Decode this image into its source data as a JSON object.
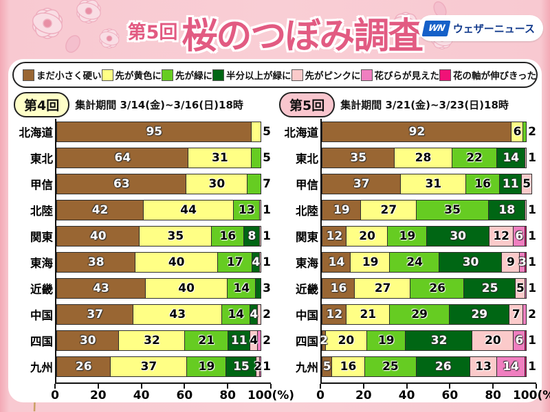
{
  "header": {
    "title_prefix": "第5回",
    "title_main": "桜のつぼみ調査",
    "title_color": "#e25b82",
    "logo_mark": "WN",
    "logo_text": "ウェザーニュース"
  },
  "legend": {
    "items": [
      {
        "label": "まだ小さく硬い",
        "color": "#996633"
      },
      {
        "label": "先が黄色に",
        "color": "#ffff85"
      },
      {
        "label": "先が緑に",
        "color": "#66cc22"
      },
      {
        "label": "半分以上が緑に",
        "color": "#006614"
      },
      {
        "label": "先がピンクに",
        "color": "#fbcaca"
      },
      {
        "label": "花びらが見えた",
        "color": "#f07fc0"
      },
      {
        "label": "花の軸が伸びきった",
        "color": "#f01277"
      }
    ]
  },
  "stage_label_text_colors": [
    "#fff",
    "#000",
    "#000",
    "#fff",
    "#000",
    "#fff",
    "#fff"
  ],
  "chart_data": [
    {
      "type": "bar",
      "subtype": "horizontal-stacked-percent",
      "round_label": "第4回",
      "badge_color": "#ffffc8",
      "period": "集計期間 3/14(金)~3/16(日)18時",
      "xlim": [
        0,
        100
      ],
      "x_ticks": [
        0,
        20,
        40,
        60,
        80,
        100
      ],
      "x_unit_suffix": "(%)",
      "grid": false,
      "categories": [
        "北海道",
        "東北",
        "甲信",
        "北陸",
        "関東",
        "東海",
        "近畿",
        "中国",
        "四国",
        "九州"
      ],
      "rows": [
        {
          "region": "北海道",
          "segments": [
            {
              "stage": 0,
              "value": 95
            },
            {
              "stage": 1,
              "value": 5,
              "out": true
            }
          ]
        },
        {
          "region": "東北",
          "segments": [
            {
              "stage": 0,
              "value": 64
            },
            {
              "stage": 1,
              "value": 31
            },
            {
              "stage": 2,
              "value": 5,
              "out": true
            }
          ]
        },
        {
          "region": "甲信",
          "segments": [
            {
              "stage": 0,
              "value": 63
            },
            {
              "stage": 1,
              "value": 30
            },
            {
              "stage": 2,
              "value": 7,
              "out": true
            }
          ]
        },
        {
          "region": "北陸",
          "segments": [
            {
              "stage": 0,
              "value": 42
            },
            {
              "stage": 1,
              "value": 44
            },
            {
              "stage": 2,
              "value": 13
            },
            {
              "stage": 4,
              "value": 1,
              "out": true
            }
          ]
        },
        {
          "region": "関東",
          "segments": [
            {
              "stage": 0,
              "value": 40
            },
            {
              "stage": 1,
              "value": 35
            },
            {
              "stage": 2,
              "value": 16
            },
            {
              "stage": 3,
              "value": 8
            },
            {
              "stage": 4,
              "value": 1,
              "out": true
            }
          ]
        },
        {
          "region": "東海",
          "segments": [
            {
              "stage": 0,
              "value": 38
            },
            {
              "stage": 1,
              "value": 40
            },
            {
              "stage": 2,
              "value": 17
            },
            {
              "stage": 3,
              "value": 4
            },
            {
              "stage": 4,
              "value": 1,
              "out": true
            }
          ]
        },
        {
          "region": "近畿",
          "segments": [
            {
              "stage": 0,
              "value": 43
            },
            {
              "stage": 1,
              "value": 40
            },
            {
              "stage": 2,
              "value": 14
            },
            {
              "stage": 3,
              "value": 3,
              "out": true
            }
          ]
        },
        {
          "region": "中国",
          "segments": [
            {
              "stage": 0,
              "value": 37
            },
            {
              "stage": 1,
              "value": 43
            },
            {
              "stage": 2,
              "value": 14
            },
            {
              "stage": 3,
              "value": 4
            },
            {
              "stage": 4,
              "value": 2,
              "out": true
            }
          ]
        },
        {
          "region": "四国",
          "segments": [
            {
              "stage": 0,
              "value": 30
            },
            {
              "stage": 1,
              "value": 32
            },
            {
              "stage": 2,
              "value": 21
            },
            {
              "stage": 3,
              "value": 11
            },
            {
              "stage": 4,
              "value": 4
            },
            {
              "stage": 5,
              "value": 2,
              "out": true
            }
          ]
        },
        {
          "region": "九州",
          "segments": [
            {
              "stage": 0,
              "value": 26
            },
            {
              "stage": 1,
              "value": 37
            },
            {
              "stage": 2,
              "value": 19
            },
            {
              "stage": 3,
              "value": 15
            },
            {
              "stage": 4,
              "value": 2
            },
            {
              "stage": 5,
              "value": 1,
              "out": true
            }
          ]
        }
      ]
    },
    {
      "type": "bar",
      "subtype": "horizontal-stacked-percent",
      "round_label": "第5回",
      "badge_color": "#f9c6ce",
      "period": "集計期間 3/21(金)~3/23(日)18時",
      "xlim": [
        0,
        100
      ],
      "x_ticks": [
        0,
        20,
        40,
        60,
        80,
        100
      ],
      "x_unit_suffix": "(%)",
      "grid": false,
      "categories": [
        "北海道",
        "東北",
        "甲信",
        "北陸",
        "関東",
        "東海",
        "近畿",
        "中国",
        "四国",
        "九州"
      ],
      "rows": [
        {
          "region": "北海道",
          "segments": [
            {
              "stage": 0,
              "value": 92
            },
            {
              "stage": 1,
              "value": 6
            },
            {
              "stage": 2,
              "value": 2,
              "out": true
            }
          ]
        },
        {
          "region": "東北",
          "segments": [
            {
              "stage": 0,
              "value": 35
            },
            {
              "stage": 1,
              "value": 28
            },
            {
              "stage": 2,
              "value": 22
            },
            {
              "stage": 3,
              "value": 14
            },
            {
              "stage": 4,
              "value": 1,
              "out": true
            }
          ]
        },
        {
          "region": "甲信",
          "segments": [
            {
              "stage": 0,
              "value": 37
            },
            {
              "stage": 1,
              "value": 31
            },
            {
              "stage": 2,
              "value": 16
            },
            {
              "stage": 3,
              "value": 11
            },
            {
              "stage": 4,
              "value": 5
            }
          ]
        },
        {
          "region": "北陸",
          "segments": [
            {
              "stage": 0,
              "value": 19
            },
            {
              "stage": 1,
              "value": 27
            },
            {
              "stage": 2,
              "value": 35
            },
            {
              "stage": 3,
              "value": 18
            },
            {
              "stage": 4,
              "value": 1,
              "out": true
            }
          ]
        },
        {
          "region": "関東",
          "segments": [
            {
              "stage": 0,
              "value": 12
            },
            {
              "stage": 1,
              "value": 20
            },
            {
              "stage": 2,
              "value": 19
            },
            {
              "stage": 3,
              "value": 30
            },
            {
              "stage": 4,
              "value": 12
            },
            {
              "stage": 5,
              "value": 6
            },
            {
              "stage": 6,
              "value": 1,
              "out": true
            }
          ]
        },
        {
          "region": "東海",
          "segments": [
            {
              "stage": 0,
              "value": 14
            },
            {
              "stage": 1,
              "value": 19
            },
            {
              "stage": 2,
              "value": 24
            },
            {
              "stage": 3,
              "value": 30
            },
            {
              "stage": 4,
              "value": 9
            },
            {
              "stage": 5,
              "value": 3
            },
            {
              "stage": 6,
              "value": 1,
              "out": true
            }
          ]
        },
        {
          "region": "近畿",
          "segments": [
            {
              "stage": 0,
              "value": 16
            },
            {
              "stage": 1,
              "value": 27
            },
            {
              "stage": 2,
              "value": 26
            },
            {
              "stage": 3,
              "value": 25
            },
            {
              "stage": 4,
              "value": 5
            },
            {
              "stage": 5,
              "value": 1,
              "out": true
            }
          ]
        },
        {
          "region": "中国",
          "segments": [
            {
              "stage": 0,
              "value": 12
            },
            {
              "stage": 1,
              "value": 21
            },
            {
              "stage": 2,
              "value": 29
            },
            {
              "stage": 3,
              "value": 29
            },
            {
              "stage": 4,
              "value": 7
            },
            {
              "stage": 5,
              "value": 2,
              "out": true
            }
          ]
        },
        {
          "region": "四国",
          "segments": [
            {
              "stage": 0,
              "value": 2
            },
            {
              "stage": 1,
              "value": 20
            },
            {
              "stage": 2,
              "value": 19
            },
            {
              "stage": 3,
              "value": 32
            },
            {
              "stage": 4,
              "value": 20
            },
            {
              "stage": 5,
              "value": 6
            },
            {
              "stage": 6,
              "value": 1,
              "out": true
            }
          ]
        },
        {
          "region": "九州",
          "segments": [
            {
              "stage": 0,
              "value": 5
            },
            {
              "stage": 1,
              "value": 16
            },
            {
              "stage": 2,
              "value": 25
            },
            {
              "stage": 3,
              "value": 26
            },
            {
              "stage": 4,
              "value": 13
            },
            {
              "stage": 5,
              "value": 14
            },
            {
              "stage": 6,
              "value": 1,
              "out": true
            }
          ]
        }
      ]
    }
  ]
}
